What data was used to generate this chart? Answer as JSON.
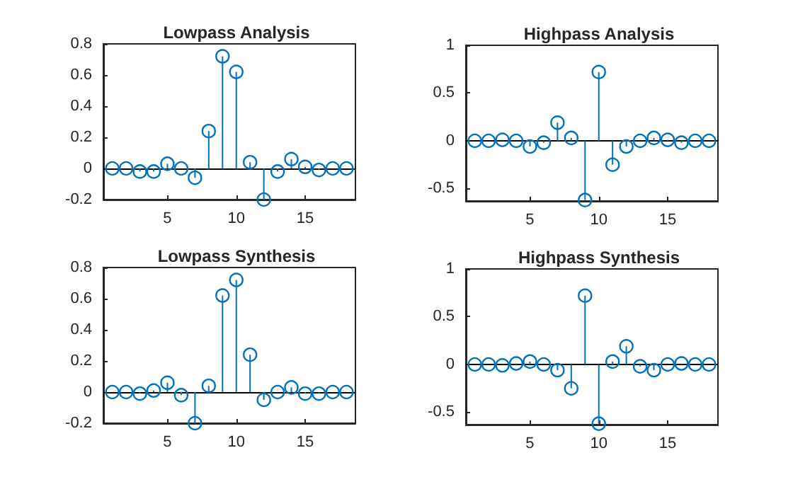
{
  "chart_data": [
    {
      "type": "lollipop",
      "title": "Lowpass Analysis",
      "x": [
        1,
        2,
        3,
        4,
        5,
        6,
        7,
        8,
        9,
        10,
        11,
        12,
        13,
        14,
        15,
        16,
        17,
        18
      ],
      "values": [
        0,
        0,
        -0.02,
        -0.02,
        0.03,
        0,
        -0.06,
        0.24,
        0.72,
        0.62,
        0.04,
        -0.2,
        -0.02,
        0.06,
        0.01,
        -0.01,
        0,
        0
      ],
      "color": "#0072bd",
      "xlim": [
        0.35,
        18.65
      ],
      "xticks": [
        5,
        10,
        15
      ],
      "ylim": [
        -0.2,
        0.8
      ],
      "yticks": [
        -0.2,
        0,
        0.2,
        0.4,
        0.6,
        0.8
      ],
      "grid": false,
      "marker": "circle",
      "ref_lines": [
        {
          "axis": "y",
          "value": 0,
          "color": "#000000"
        }
      ]
    },
    {
      "type": "lollipop",
      "title": "Highpass Analysis",
      "x": [
        1,
        2,
        3,
        4,
        5,
        6,
        7,
        8,
        9,
        10,
        11,
        12,
        13,
        14,
        15,
        16,
        17,
        18
      ],
      "values": [
        0,
        0,
        0.01,
        0,
        -0.06,
        -0.02,
        0.19,
        0.03,
        -0.62,
        0.72,
        -0.25,
        -0.06,
        0,
        0.03,
        0.01,
        -0.02,
        0,
        0
      ],
      "color": "#0072bd",
      "xlim": [
        0.35,
        18.65
      ],
      "xticks": [
        5,
        10,
        15
      ],
      "ylim": [
        -0.63,
        1
      ],
      "yticks": [
        -0.5,
        0,
        0.5,
        1
      ],
      "grid": false,
      "marker": "circle",
      "ref_lines": [
        {
          "axis": "y",
          "value": 0,
          "color": "#000000"
        }
      ]
    },
    {
      "type": "lollipop",
      "title": "Lowpass Synthesis",
      "x": [
        1,
        2,
        3,
        4,
        5,
        6,
        7,
        8,
        9,
        10,
        11,
        12,
        13,
        14,
        15,
        16,
        17,
        18
      ],
      "values": [
        0,
        0,
        -0.01,
        0.01,
        0.06,
        -0.02,
        -0.2,
        0.04,
        0.62,
        0.72,
        0.24,
        -0.05,
        0,
        0.03,
        -0.01,
        -0.01,
        0,
        0
      ],
      "color": "#0072bd",
      "xlim": [
        0.35,
        18.65
      ],
      "xticks": [
        5,
        10,
        15
      ],
      "ylim": [
        -0.2,
        0.8
      ],
      "yticks": [
        -0.2,
        0,
        0.2,
        0.4,
        0.6,
        0.8
      ],
      "grid": false,
      "marker": "circle",
      "ref_lines": [
        {
          "axis": "y",
          "value": 0,
          "color": "#000000"
        }
      ]
    },
    {
      "type": "lollipop",
      "title": "Highpass Synthesis",
      "x": [
        1,
        2,
        3,
        4,
        5,
        6,
        7,
        8,
        9,
        10,
        11,
        12,
        13,
        14,
        15,
        16,
        17,
        18
      ],
      "values": [
        0,
        0,
        -0.01,
        0.01,
        0.03,
        0,
        -0.06,
        -0.25,
        0.72,
        -0.62,
        0.03,
        0.19,
        -0.02,
        -0.06,
        0,
        0.01,
        0,
        0
      ],
      "color": "#0072bd",
      "xlim": [
        0.35,
        18.65
      ],
      "xticks": [
        5,
        10,
        15
      ],
      "ylim": [
        -0.63,
        1
      ],
      "yticks": [
        -0.5,
        0,
        0.5,
        1
      ],
      "grid": false,
      "marker": "circle",
      "ref_lines": [
        {
          "axis": "y",
          "value": 0,
          "color": "#000000"
        }
      ]
    }
  ]
}
